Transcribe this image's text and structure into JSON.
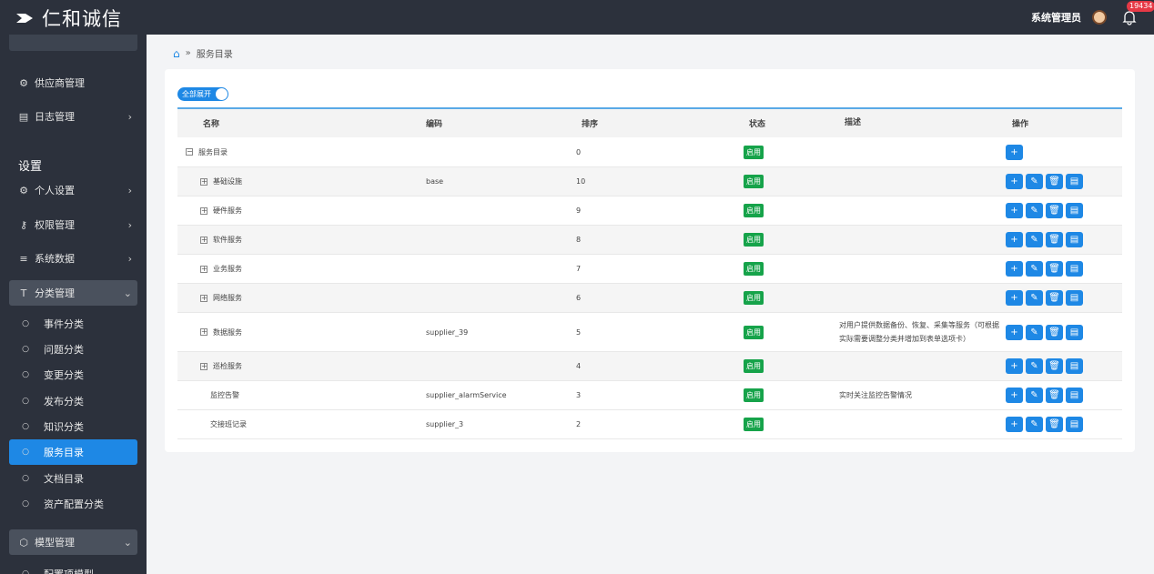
{
  "app": {
    "logo_text": "仁和诚信",
    "admin_name": "系统管理员",
    "notification_count": "19434"
  },
  "sidebar": {
    "supplier": "供应商管理",
    "log": "日志管理",
    "section_settings": "设置",
    "personal": "个人设置",
    "permission": "权限管理",
    "system_data": "系统数据",
    "category": "分类管理",
    "sub_items": [
      "事件分类",
      "问题分类",
      "变更分类",
      "发布分类",
      "知识分类",
      "服务目录",
      "文档目录",
      "资产配置分类"
    ],
    "model": "模型管理",
    "config_model": "配置项模型"
  },
  "breadcrumb": {
    "current": "服务目录"
  },
  "toolbar": {
    "expand_all": "全部展开"
  },
  "table": {
    "headers": {
      "name": "名称",
      "code": "编码",
      "sort": "排序",
      "status": "状态",
      "desc": "描述",
      "ops": "操作"
    },
    "rows": [
      {
        "name": "服务目录",
        "code": "",
        "sort": "0",
        "status": "启用",
        "desc": ""
      },
      {
        "name": "基础设施",
        "code": "base",
        "sort": "10",
        "status": "启用",
        "desc": ""
      },
      {
        "name": "硬件服务",
        "code": "",
        "sort": "9",
        "status": "启用",
        "desc": ""
      },
      {
        "name": "软件服务",
        "code": "",
        "sort": "8",
        "status": "启用",
        "desc": ""
      },
      {
        "name": "业务服务",
        "code": "",
        "sort": "7",
        "status": "启用",
        "desc": ""
      },
      {
        "name": "网络服务",
        "code": "",
        "sort": "6",
        "status": "启用",
        "desc": ""
      },
      {
        "name": "数据服务",
        "code": "supplier_39",
        "sort": "5",
        "status": "启用",
        "desc": "对用户提供数据备份、恢复、采集等服务（可根据实际需要调整分类并增加到表单选项卡）"
      },
      {
        "name": "巡检服务",
        "code": "",
        "sort": "4",
        "status": "启用",
        "desc": ""
      },
      {
        "name": "监控告警",
        "code": "supplier_alarmService",
        "sort": "3",
        "status": "启用",
        "desc": "实时关注监控告警情况"
      },
      {
        "name": "交接班记录",
        "code": "supplier_3",
        "sort": "2",
        "status": "启用",
        "desc": ""
      }
    ]
  },
  "icons": {
    "add": "+",
    "edit": "✎",
    "delete": "🗑",
    "detail": "▤"
  }
}
